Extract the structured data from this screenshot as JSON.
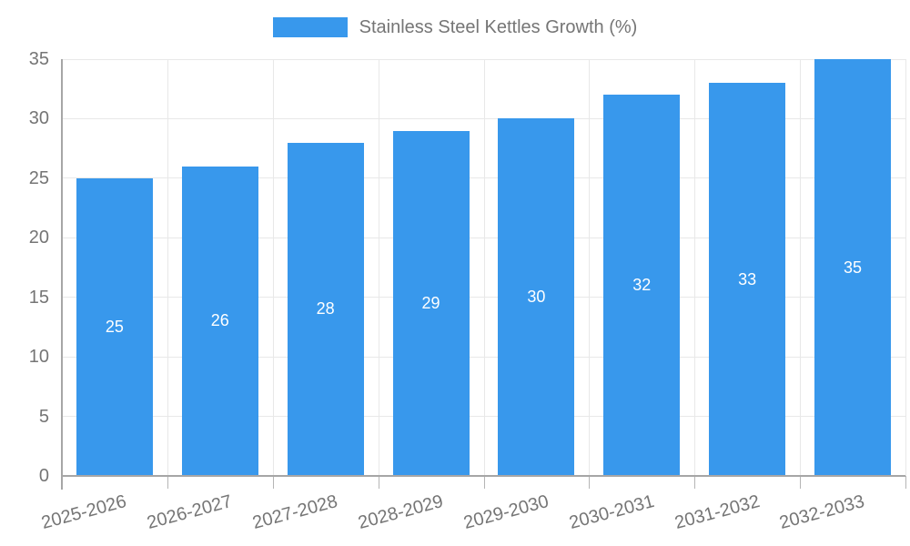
{
  "chart_data": {
    "type": "bar",
    "title": "Stainless Steel Kettles Growth (%)",
    "legend_entries": [
      "Stainless Steel Kettles Growth (%)"
    ],
    "legend_position": "top",
    "categories": [
      "2025-2026",
      "2026-2027",
      "2027-2028",
      "2028-2029",
      "2029-2030",
      "2030-2031",
      "2031-2032",
      "2032-2033"
    ],
    "values": [
      25,
      26,
      28,
      29,
      30,
      32,
      33,
      35
    ],
    "bar_labels_shown": true,
    "xlabel": "",
    "ylabel": "",
    "ylim": [
      0,
      35
    ],
    "yticks": [
      0,
      5,
      10,
      15,
      20,
      25,
      30,
      35
    ],
    "grid": true
  },
  "colors": {
    "bar": "#3898EC",
    "bar_label_text": "#FFFFFF",
    "axis_text": "#757575",
    "gridline": "#E8E8E8",
    "axis_line": "#A6A6A6",
    "tick_mark": "#B5B5B5",
    "background": "#FFFFFF"
  }
}
